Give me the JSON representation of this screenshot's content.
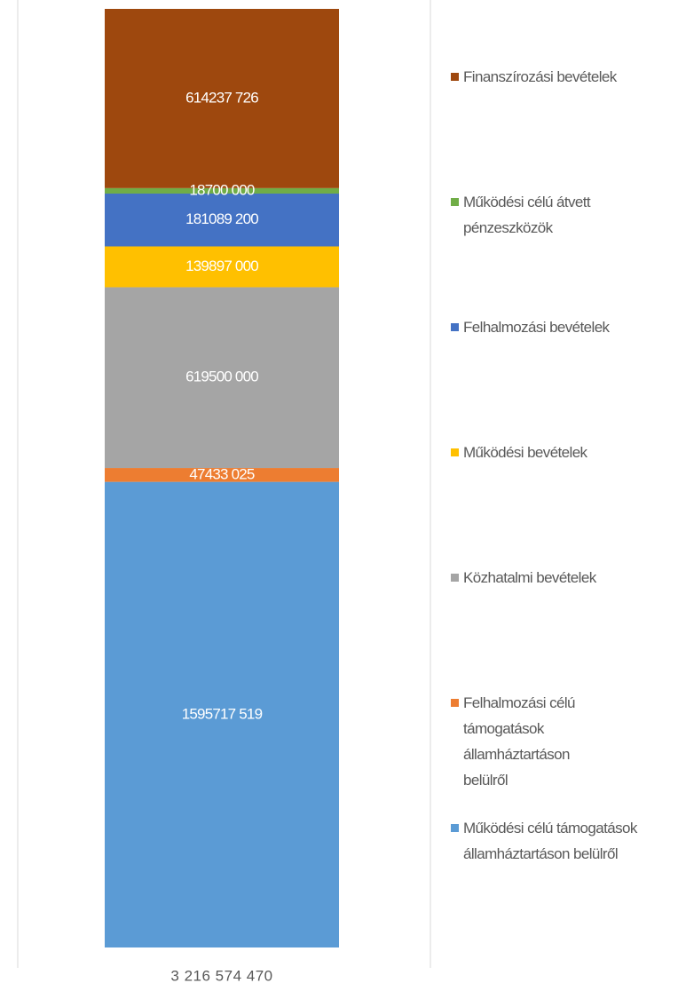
{
  "chart_data": {
    "type": "stacked-bar",
    "categories": [
      "3 216 574 470"
    ],
    "series": [
      {
        "name": "Működési célú támogatások államháztartáson belülről",
        "color": "#5b9bd5",
        "values": [
          1595717519
        ],
        "value_labels": [
          "1595717 519"
        ]
      },
      {
        "name": "Felhalmozási célú támogatások államháztartáson belülről",
        "color": "#ed7d31",
        "values": [
          47433025
        ],
        "value_labels": [
          "47433 025"
        ]
      },
      {
        "name": "Közhatalmi bevételek",
        "color": "#a5a5a5",
        "values": [
          619500000
        ],
        "value_labels": [
          "619500 000"
        ]
      },
      {
        "name": "Működési bevételek",
        "color": "#ffc000",
        "values": [
          139897000
        ],
        "value_labels": [
          "139897 000"
        ]
      },
      {
        "name": "Felhalmozási bevételek",
        "color": "#4472c4",
        "values": [
          181089200
        ],
        "value_labels": [
          "181089 200"
        ]
      },
      {
        "name": "Működési célú átvett pénzeszközök",
        "color": "#70ad47",
        "values": [
          18700000
        ],
        "value_labels": [
          "18700 000"
        ]
      },
      {
        "name": "Finanszírozási bevételek",
        "color": "#9e480e",
        "values": [
          614237726
        ],
        "value_labels": [
          "614237 726"
        ]
      }
    ]
  }
}
